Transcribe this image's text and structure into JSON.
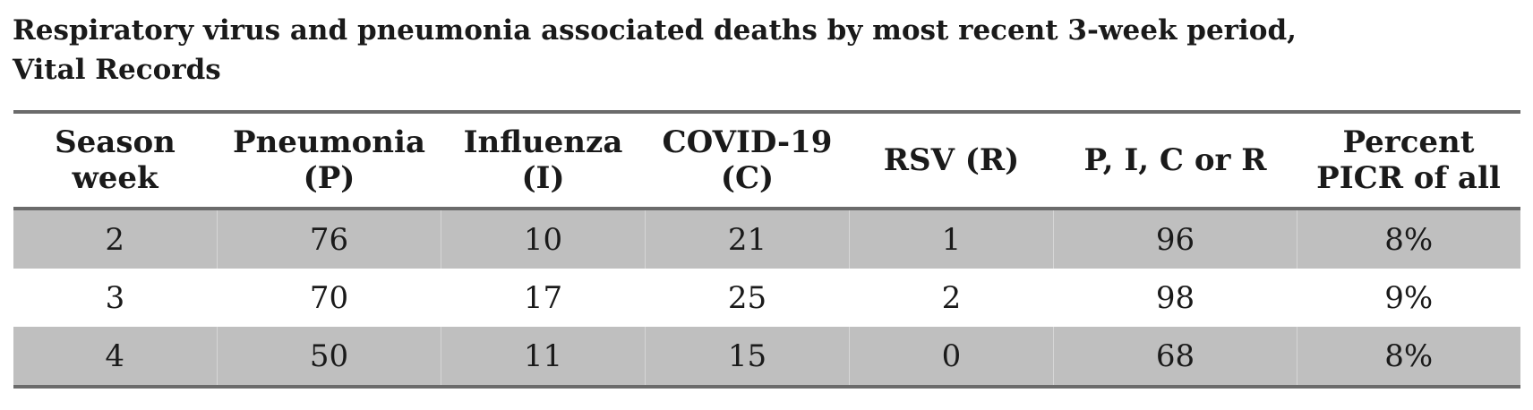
{
  "title": {
    "line1": "Respiratory virus and pneumonia associated deaths by most recent 3-week period,",
    "line2": "Vital Records"
  },
  "table": {
    "headers": [
      {
        "line1": "Season",
        "line2": "week"
      },
      {
        "line1": "Pneumonia",
        "line2": "(P)"
      },
      {
        "line1": "Influenza",
        "line2": "(I)"
      },
      {
        "line1": "COVID-19",
        "line2": "(C)"
      },
      {
        "line1": "RSV (R)",
        "line2": ""
      },
      {
        "line1": "P, I, C or R",
        "line2": ""
      },
      {
        "line1": "Percent",
        "line2": "PICR of all"
      }
    ],
    "rows": [
      {
        "cells": [
          "2",
          "76",
          "10",
          "21",
          "1",
          "96",
          "8%"
        ]
      },
      {
        "cells": [
          "3",
          "70",
          "17",
          "25",
          "2",
          "98",
          "9%"
        ]
      },
      {
        "cells": [
          "4",
          "50",
          "11",
          "15",
          "0",
          "68",
          "8%"
        ]
      }
    ]
  },
  "chart_data": {
    "type": "table",
    "title": "Respiratory virus and pneumonia associated deaths by most recent 3-week period, Vital Records",
    "columns": [
      "Season week",
      "Pneumonia (P)",
      "Influenza (I)",
      "COVID-19 (C)",
      "RSV (R)",
      "P, I, C or R",
      "Percent PICR of all"
    ],
    "rows": [
      [
        2,
        76,
        10,
        21,
        1,
        96,
        "8%"
      ],
      [
        3,
        70,
        17,
        25,
        2,
        98,
        "9%"
      ],
      [
        4,
        50,
        11,
        15,
        0,
        68,
        "8%"
      ]
    ]
  }
}
